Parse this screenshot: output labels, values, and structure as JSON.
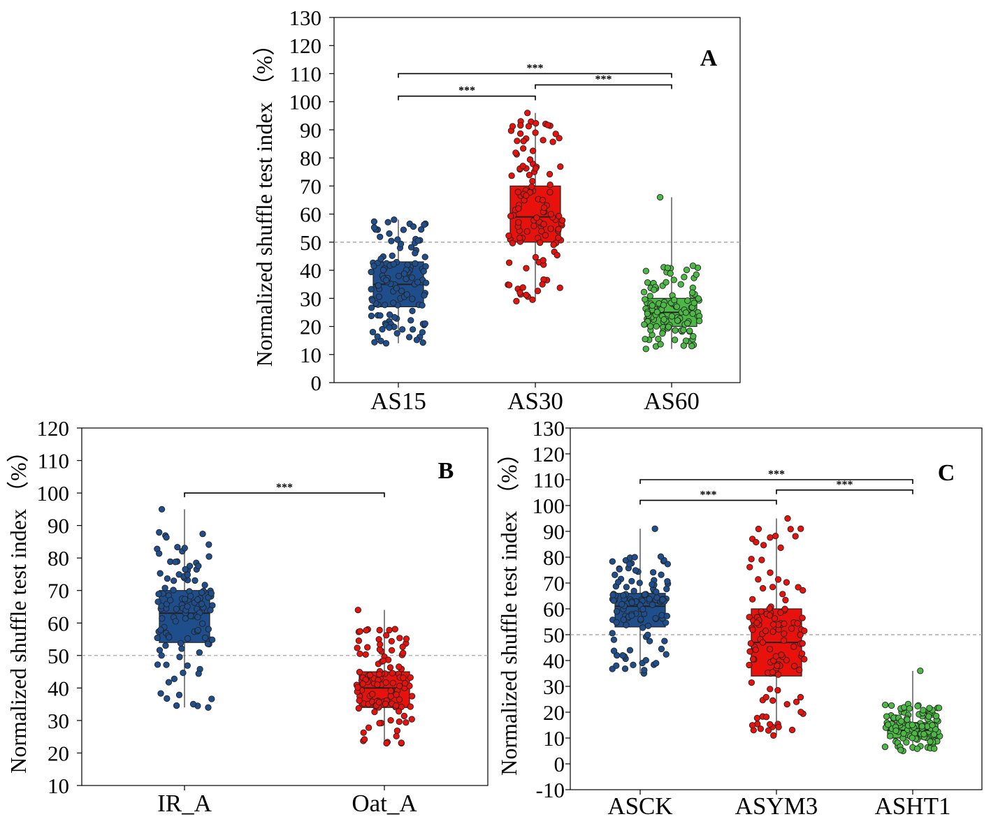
{
  "colors": {
    "blue": "#1f4e8c",
    "red": "#e8110c",
    "green": "#4cb944",
    "point_edge": "#222222",
    "axis": "#000000",
    "reference_line": "#999999"
  },
  "chart_data": [
    {
      "id": "A",
      "type": "box",
      "panel_label": "A",
      "ylabel": "Normalized shuffle test index （%）",
      "ylim": [
        0,
        130
      ],
      "yticks": [
        0,
        10,
        20,
        30,
        40,
        50,
        60,
        70,
        80,
        90,
        100,
        110,
        120,
        130
      ],
      "reference_line": 50,
      "categories": [
        "AS15",
        "AS30",
        "AS60"
      ],
      "boxes": [
        {
          "name": "AS15",
          "color": "blue",
          "q1": 27,
          "median": 35,
          "q3": 43,
          "whisker_low": 14,
          "whisker_high": 58,
          "n_points": 120
        },
        {
          "name": "AS30",
          "color": "red",
          "q1": 50,
          "median": 59,
          "q3": 70,
          "whisker_low": 29,
          "whisker_high": 96,
          "n_points": 120
        },
        {
          "name": "AS60",
          "color": "green",
          "q1": 20,
          "median": 25,
          "q3": 30,
          "whisker_low": 12,
          "whisker_high": 66,
          "n_points": 120
        }
      ],
      "significance": [
        {
          "from": 0,
          "to": 1,
          "y": 102,
          "label": "***"
        },
        {
          "from": 1,
          "to": 2,
          "y": 106,
          "label": "***"
        },
        {
          "from": 0,
          "to": 2,
          "y": 110,
          "label": "***"
        }
      ]
    },
    {
      "id": "B",
      "type": "box",
      "panel_label": "B",
      "ylabel": "Normalized shuffle test index （%）",
      "ylim": [
        10,
        120
      ],
      "yticks": [
        10,
        20,
        30,
        40,
        50,
        60,
        70,
        80,
        90,
        100,
        110,
        120
      ],
      "reference_line": 50,
      "categories": [
        "IR_A",
        "Oat_A"
      ],
      "boxes": [
        {
          "name": "IR_A",
          "color": "blue",
          "q1": 54,
          "median": 63,
          "q3": 70,
          "whisker_low": 34,
          "whisker_high": 95,
          "n_points": 120
        },
        {
          "name": "Oat_A",
          "color": "red",
          "q1": 34,
          "median": 40,
          "q3": 45,
          "whisker_low": 23,
          "whisker_high": 64,
          "n_points": 120
        }
      ],
      "significance": [
        {
          "from": 0,
          "to": 1,
          "y": 100,
          "label": "***"
        }
      ]
    },
    {
      "id": "C",
      "type": "box",
      "panel_label": "C",
      "ylabel": "Normalized shuffle test index （%）",
      "ylim": [
        -10,
        130
      ],
      "yticks": [
        -10,
        0,
        10,
        20,
        30,
        40,
        50,
        60,
        70,
        80,
        90,
        100,
        110,
        120,
        130
      ],
      "reference_line": 50,
      "categories": [
        "ASCK",
        "ASYM3",
        "ASHT1"
      ],
      "boxes": [
        {
          "name": "ASCK",
          "color": "blue",
          "q1": 53,
          "median": 61,
          "q3": 66,
          "whisker_low": 35,
          "whisker_high": 91,
          "n_points": 120
        },
        {
          "name": "ASYM3",
          "color": "red",
          "q1": 34,
          "median": 47,
          "q3": 60,
          "whisker_low": 11,
          "whisker_high": 95,
          "n_points": 120
        },
        {
          "name": "ASHT1",
          "color": "green",
          "q1": 10,
          "median": 13,
          "q3": 16,
          "whisker_low": 5,
          "whisker_high": 36,
          "n_points": 120
        }
      ],
      "significance": [
        {
          "from": 0,
          "to": 1,
          "y": 102,
          "label": "***"
        },
        {
          "from": 1,
          "to": 2,
          "y": 106,
          "label": "***"
        },
        {
          "from": 0,
          "to": 2,
          "y": 110,
          "label": "***"
        }
      ]
    }
  ]
}
